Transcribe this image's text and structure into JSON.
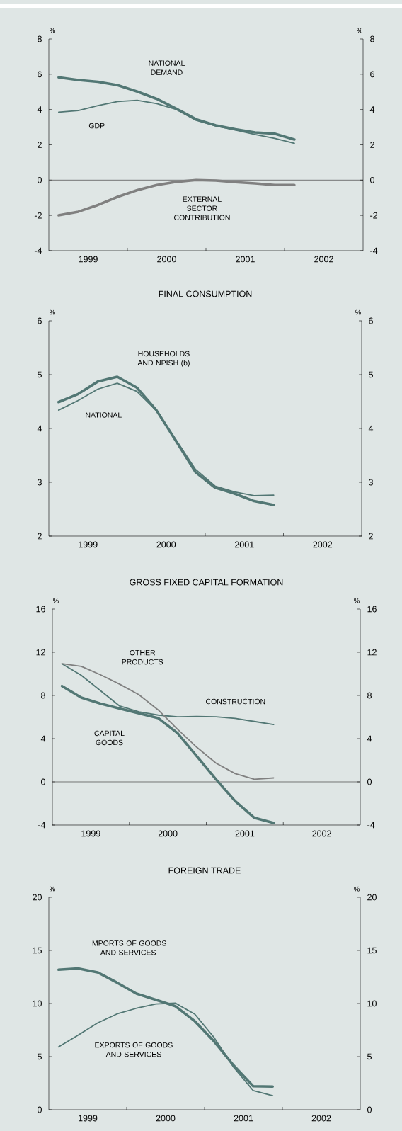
{
  "chart_data": [
    {
      "type": "line",
      "ylabel": "%",
      "y2label": "%",
      "x": [
        1999.125,
        1999.375,
        1999.625,
        1999.875,
        2000.125,
        2000.375,
        2000.625,
        2000.875,
        2001.125,
        2001.375,
        2001.625,
        2001.875,
        2002.125
      ],
      "xlim": [
        1999,
        2003
      ],
      "xticks": [
        {
          "value": 1999.5,
          "label": "1999"
        },
        {
          "value": 2000,
          "label": null
        },
        {
          "value": 2000.5,
          "label": "2000"
        },
        {
          "value": 2001,
          "label": null
        },
        {
          "value": 2001.5,
          "label": "2001"
        },
        {
          "value": 2002,
          "label": null
        },
        {
          "value": 2002.5,
          "label": "2002"
        }
      ],
      "ylim": [
        -4,
        8
      ],
      "yticks": [
        -4,
        -2,
        0,
        2,
        4,
        6,
        8
      ],
      "y2lim": [
        -4,
        8
      ],
      "y2ticks": [
        -4,
        -2,
        0,
        2,
        4,
        6,
        8
      ],
      "ref_lines": [
        {
          "axis": "y",
          "value": 0,
          "color": "#595959"
        }
      ],
      "series": [
        {
          "name": "NATIONAL DEMAND",
          "color": "#527774",
          "values": [
            5.82,
            5.67,
            5.57,
            5.38,
            5.02,
            4.6,
            4.04,
            3.45,
            3.1,
            2.88,
            2.7,
            2.63,
            2.3
          ]
        },
        {
          "name": "GDP",
          "color": "#527774",
          "values": [
            3.85,
            3.94,
            4.22,
            4.45,
            4.52,
            4.33,
            4.0,
            3.39,
            3.07,
            2.84,
            2.59,
            2.37,
            2.08
          ]
        },
        {
          "name": "EXTERNAL SECTOR CONTRIBUTION",
          "color": "#808080",
          "values": [
            -1.99,
            -1.79,
            -1.41,
            -0.95,
            -0.57,
            -0.28,
            -0.1,
            0.0,
            -0.03,
            -0.12,
            -0.19,
            -0.28,
            -0.28
          ]
        }
      ]
    },
    {
      "type": "line",
      "title": "FINAL CONSUMPTION",
      "ylabel": "%",
      "y2label": "%",
      "x": [
        1999.125,
        1999.375,
        1999.625,
        1999.875,
        2000.125,
        2000.375,
        2000.625,
        2000.875,
        2001.125,
        2001.375,
        2001.625,
        2001.875
      ],
      "xlim": [
        1999,
        2003
      ],
      "xticks": [
        {
          "value": 1999.5,
          "label": "1999"
        },
        {
          "value": 2000,
          "label": null
        },
        {
          "value": 2000.5,
          "label": "2000"
        },
        {
          "value": 2001,
          "label": null
        },
        {
          "value": 2001.5,
          "label": "2001"
        },
        {
          "value": 2002,
          "label": null
        },
        {
          "value": 2002.5,
          "label": "2002"
        }
      ],
      "ylim": [
        2,
        6
      ],
      "yticks": [
        2,
        3,
        4,
        5,
        6
      ],
      "y2lim": [
        2,
        6
      ],
      "y2ticks": [
        2,
        3,
        4,
        5,
        6
      ],
      "series": [
        {
          "name": "HOUSEHOLDS AND NPISH (b)",
          "color": "#527774",
          "values": [
            4.49,
            4.64,
            4.87,
            4.96,
            4.76,
            4.34,
            3.77,
            3.19,
            2.9,
            2.79,
            2.65,
            2.58
          ]
        },
        {
          "name": "NATIONAL",
          "color": "#527774",
          "values": [
            4.34,
            4.52,
            4.73,
            4.84,
            4.69,
            4.33,
            3.79,
            3.24,
            2.93,
            2.82,
            2.75,
            2.76
          ]
        }
      ]
    },
    {
      "type": "line",
      "title": "GROSS FIXED CAPITAL FORMATION",
      "ylabel": "%",
      "y2label": "%",
      "x": [
        1999.125,
        1999.375,
        1999.625,
        1999.875,
        2000.125,
        2000.375,
        2000.625,
        2000.875,
        2001.125,
        2001.375,
        2001.625,
        2001.875
      ],
      "xlim": [
        1999,
        2003
      ],
      "xticks": [
        {
          "value": 1999.5,
          "label": "1999"
        },
        {
          "value": 2000,
          "label": null
        },
        {
          "value": 2000.5,
          "label": "2000"
        },
        {
          "value": 2001,
          "label": null
        },
        {
          "value": 2001.5,
          "label": "2001"
        },
        {
          "value": 2002,
          "label": null
        },
        {
          "value": 2002.5,
          "label": "2002"
        }
      ],
      "ylim": [
        -4,
        16
      ],
      "yticks": [
        -4,
        0,
        4,
        8,
        12,
        16
      ],
      "y2lim": [
        -4,
        16
      ],
      "y2ticks": [
        -4,
        0,
        4,
        8,
        12,
        16
      ],
      "ref_lines": [
        {
          "axis": "y",
          "value": 0,
          "color": "#595959"
        }
      ],
      "series": [
        {
          "name": "CAPITAL GOODS",
          "color": "#527774",
          "values": [
            8.87,
            7.8,
            7.25,
            6.78,
            6.35,
            5.9,
            4.52,
            2.38,
            0.24,
            -1.78,
            -3.33,
            -3.8
          ]
        },
        {
          "name": "CONSTRUCTION",
          "color": "#527774",
          "values": [
            10.94,
            9.87,
            8.44,
            7.02,
            6.49,
            6.18,
            6.02,
            6.06,
            6.02,
            5.87,
            5.59,
            5.3
          ]
        },
        {
          "name": "OTHER PRODUCTS",
          "color": "#808080",
          "values": [
            10.94,
            10.7,
            9.92,
            9.04,
            8.06,
            6.66,
            4.88,
            3.21,
            1.74,
            0.76,
            0.24,
            0.36
          ]
        }
      ]
    },
    {
      "type": "line",
      "title": "FOREIGN TRADE",
      "ylabel": "%",
      "y2label": "%",
      "x": [
        1999.125,
        1999.375,
        1999.625,
        1999.875,
        2000.125,
        2000.375,
        2000.625,
        2000.875,
        2001.125,
        2001.375,
        2001.625,
        2001.875
      ],
      "xlim": [
        1999,
        2003
      ],
      "xticks": [
        {
          "value": 1999.5,
          "label": "1999"
        },
        {
          "value": 2000,
          "label": null
        },
        {
          "value": 2000.5,
          "label": "2000"
        },
        {
          "value": 2001,
          "label": null
        },
        {
          "value": 2001.5,
          "label": "2001"
        },
        {
          "value": 2002,
          "label": null
        },
        {
          "value": 2002.5,
          "label": "2002"
        }
      ],
      "ylim": [
        0,
        20
      ],
      "yticks": [
        0,
        5,
        10,
        15,
        20
      ],
      "y2lim": [
        0,
        20
      ],
      "y2ticks": [
        0,
        5,
        10,
        15,
        20
      ],
      "series": [
        {
          "name": "IMPORTS OF GOODS AND SERVICES",
          "color": "#527774",
          "values": [
            13.18,
            13.3,
            12.94,
            11.97,
            10.93,
            10.35,
            9.75,
            8.34,
            6.41,
            4.16,
            2.22,
            2.18
          ]
        },
        {
          "name": "EXPORTS OF GOODS AND SERVICES",
          "color": "#527774",
          "values": [
            5.92,
            7.01,
            8.17,
            9.02,
            9.55,
            9.96,
            10.04,
            9.0,
            6.77,
            3.99,
            1.81,
            1.33
          ]
        }
      ]
    }
  ]
}
